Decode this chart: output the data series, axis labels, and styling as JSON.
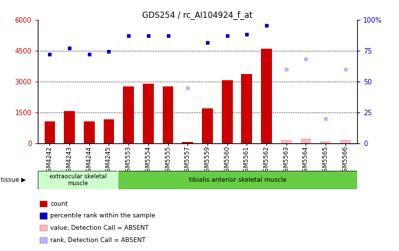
{
  "title": "GDS254 / rc_AI104924_f_at",
  "categories": [
    "GSM4242",
    "GSM4243",
    "GSM4244",
    "GSM4245",
    "GSM5553",
    "GSM5554",
    "GSM5555",
    "GSM5557",
    "GSM5559",
    "GSM5560",
    "GSM5561",
    "GSM5562",
    "GSM5563",
    "GSM5564",
    "GSM5565",
    "GSM5566"
  ],
  "bar_values": [
    1050,
    1550,
    1050,
    1150,
    2750,
    2900,
    2750,
    60,
    1700,
    3050,
    3350,
    4600,
    null,
    null,
    null,
    null
  ],
  "bar_absent_values": [
    null,
    null,
    null,
    null,
    null,
    null,
    null,
    null,
    null,
    null,
    null,
    null,
    150,
    230,
    80,
    150
  ],
  "dot_values": [
    4350,
    4650,
    4350,
    4480,
    5250,
    5250,
    5250,
    null,
    4900,
    5250,
    5300,
    5750,
    null,
    null,
    null,
    null
  ],
  "dot_absent_values": [
    null,
    null,
    null,
    null,
    null,
    null,
    null,
    2700,
    null,
    null,
    null,
    null,
    3600,
    4100,
    null,
    3600
  ],
  "dot_absent_low": [
    null,
    null,
    null,
    null,
    null,
    null,
    null,
    null,
    null,
    null,
    null,
    null,
    null,
    null,
    1200,
    null
  ],
  "left_ylim": [
    0,
    6000
  ],
  "right_ylim": [
    0,
    100
  ],
  "left_yticks": [
    0,
    1500,
    3000,
    4500,
    6000
  ],
  "right_yticks": [
    0,
    25,
    50,
    75,
    100
  ],
  "right_yticklabels": [
    "0",
    "25",
    "50",
    "75",
    "100%"
  ],
  "bar_color": "#cc0000",
  "bar_absent_color": "#ffb3ba",
  "dot_color": "#0000cc",
  "dot_absent_color": "#b3b3ff",
  "plot_bg": "#ffffff",
  "tissue_bg_left": "#ccffcc",
  "tissue_bg_right": "#66cc44",
  "tissue_label_left": "extraocular skeletal\nmuscle",
  "tissue_label_right": "tibialis anterior skeletal muscle",
  "tissue_divider": 4,
  "gridline_values": [
    1500,
    3000,
    4500
  ],
  "legend_items": [
    {
      "label": "count",
      "color": "#cc0000"
    },
    {
      "label": "percentile rank within the sample",
      "color": "#0000cc"
    },
    {
      "label": "value, Detection Call = ABSENT",
      "color": "#ffb3ba"
    },
    {
      "label": "rank, Detection Call = ABSENT",
      "color": "#b3b3ff"
    }
  ]
}
